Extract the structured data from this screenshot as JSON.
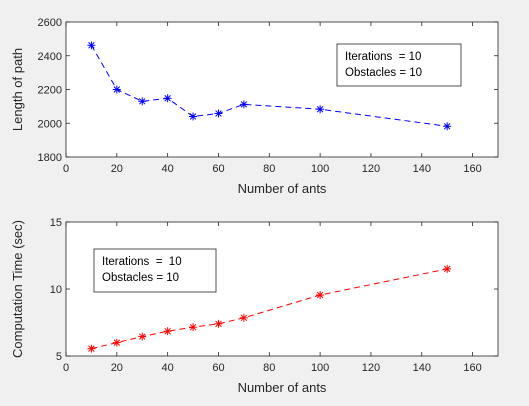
{
  "chart_data": [
    {
      "type": "line",
      "title": "",
      "xlabel": "Number of ants",
      "ylabel": "Length of path",
      "xlim": [
        0,
        170
      ],
      "ylim": [
        1800,
        2600
      ],
      "xticks": [
        0,
        20,
        40,
        60,
        80,
        100,
        120,
        140,
        160
      ],
      "yticks": [
        1800,
        2000,
        2200,
        2400,
        2600
      ],
      "grid": false,
      "series": [
        {
          "color": "#0000ff",
          "marker": "asterisk",
          "line_style": "dashed",
          "x": [
            10,
            20,
            30,
            40,
            50,
            60,
            70,
            100,
            150
          ],
          "y": [
            2462,
            2200,
            2130,
            2148,
            2040,
            2058,
            2112,
            2083,
            1982
          ]
        }
      ],
      "annotation": {
        "lines": [
          "Iterations  = 10",
          "Obstacles = 10"
        ],
        "placement": "top-right"
      }
    },
    {
      "type": "line",
      "title": "",
      "xlabel": "Number of ants",
      "ylabel": "Computation Time (sec)",
      "xlim": [
        0,
        170
      ],
      "ylim": [
        5,
        15
      ],
      "xticks": [
        0,
        20,
        40,
        60,
        80,
        100,
        120,
        140,
        160
      ],
      "yticks": [
        5,
        10,
        15
      ],
      "grid": false,
      "series": [
        {
          "color": "#ff0000",
          "marker": "asterisk",
          "line_style": "dashed",
          "x": [
            10,
            20,
            30,
            40,
            50,
            60,
            70,
            100,
            150
          ],
          "y": [
            5.55,
            6.0,
            6.45,
            6.85,
            7.15,
            7.4,
            7.85,
            9.55,
            11.5
          ]
        }
      ],
      "annotation": {
        "lines": [
          "Iterations  =  10",
          "Obstacles = 10"
        ],
        "placement": "top-left"
      }
    }
  ]
}
